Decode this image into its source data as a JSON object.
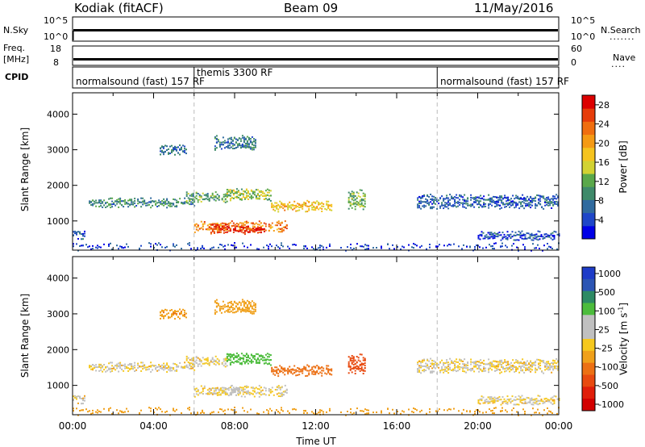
{
  "header": {
    "radar": "Kodiak (fitACF)",
    "beam": "Beam 09",
    "date": "11/May/2016"
  },
  "status_panels": {
    "nsky": {
      "label": "N.Sky",
      "left_ticks": [
        "10^5",
        "10^0"
      ],
      "right_ticks": [
        "10^5",
        "10^0"
      ],
      "right_label": "N.Search"
    },
    "freq": {
      "label_line1": "Freq.",
      "label_line2": "[MHz]",
      "left_ticks": [
        "18",
        "8"
      ],
      "right_ticks": [
        "60",
        "0"
      ],
      "right_label": "Nave"
    },
    "cpid": {
      "label": "CPID"
    }
  },
  "cpid_segments": [
    {
      "label": "normalsound (fast) 157 RF",
      "start_hour": 0
    },
    {
      "label": "themis 3300 RF",
      "start_hour": 6
    },
    {
      "label": "normalsound (fast) 157 RF",
      "start_hour": 18
    }
  ],
  "x_axis": {
    "label": "Time UT",
    "ticks": [
      "00:00",
      "04:00",
      "08:00",
      "12:00",
      "16:00",
      "20:00",
      "00:00"
    ],
    "range_hours": [
      0,
      24
    ]
  },
  "y_axis": {
    "label": "Slant Range [km]",
    "ticks": [
      "1000",
      "2000",
      "3000",
      "4000"
    ],
    "range_km": [
      180,
      4600
    ]
  },
  "power_colorbar": {
    "label": "Power [dB]",
    "ticks": [
      "4",
      "8",
      "12",
      "16",
      "20",
      "24",
      "28"
    ],
    "colors": [
      "#0000e6",
      "#1e46c8",
      "#2f6a9e",
      "#3f8a6a",
      "#5aa84a",
      "#d2d232",
      "#f5c31e",
      "#f59a14",
      "#f06e0f",
      "#e63c0a",
      "#dc0000"
    ]
  },
  "velocity_colorbar": {
    "label": "Velocity [m s-1]",
    "ticks": [
      "1000",
      "500",
      "100",
      "25",
      "-25",
      "-100",
      "-500",
      "-1000"
    ],
    "colors": [
      "#1e3cc8",
      "#2c55b4",
      "#2d8a64",
      "#4cbc3c",
      "#c0c0c0",
      "#c0c0c0",
      "#f5c81e",
      "#f0a01a",
      "#ec7014",
      "#e84a10",
      "#e01e0a",
      "#d20000"
    ]
  },
  "chart_data": [
    {
      "type": "heatmap",
      "title": "Power [dB]",
      "xlabel": "Time UT",
      "ylabel": "Slant Range [km]",
      "xlim": [
        0,
        24
      ],
      "ylim": [
        180,
        4600
      ],
      "color_range": [
        0,
        30
      ],
      "echo_regions": [
        {
          "t_start": 0.0,
          "t_end": 0.6,
          "range_center": 620,
          "range_width": 180,
          "value": 5
        },
        {
          "t_start": 0.8,
          "t_end": 6.0,
          "range_center": 1520,
          "range_width": 160,
          "value": 9
        },
        {
          "t_start": 4.3,
          "t_end": 5.6,
          "range_center": 3000,
          "range_width": 220,
          "value": 7
        },
        {
          "t_start": 5.6,
          "t_end": 7.6,
          "range_center": 1680,
          "range_width": 200,
          "value": 11
        },
        {
          "t_start": 7.6,
          "t_end": 9.8,
          "range_center": 1750,
          "range_width": 260,
          "value": 14
        },
        {
          "t_start": 9.8,
          "t_end": 12.8,
          "range_center": 1420,
          "range_width": 220,
          "value": 18
        },
        {
          "t_start": 6.0,
          "t_end": 10.6,
          "range_center": 850,
          "range_width": 200,
          "value": 22
        },
        {
          "t_start": 6.8,
          "t_end": 9.5,
          "range_center": 780,
          "range_width": 150,
          "value": 28
        },
        {
          "t_start": 7.0,
          "t_end": 9.0,
          "range_center": 3200,
          "range_width": 300,
          "value": 8
        },
        {
          "t_start": 13.6,
          "t_end": 14.4,
          "range_center": 1600,
          "range_width": 450,
          "value": 12
        },
        {
          "t_start": 17.0,
          "t_end": 24.0,
          "range_center": 1550,
          "range_width": 300,
          "value": 6
        },
        {
          "t_start": 20.0,
          "t_end": 24.0,
          "range_center": 600,
          "range_width": 150,
          "value": 5
        },
        {
          "t_start": 0.0,
          "t_end": 24.0,
          "range_center": 280,
          "range_width": 120,
          "value": 4
        }
      ]
    },
    {
      "type": "heatmap",
      "title": "Velocity [m s-1]",
      "xlabel": "Time UT",
      "ylabel": "Slant Range [km]",
      "xlim": [
        0,
        24
      ],
      "ylim": [
        180,
        4600
      ],
      "color_range": [
        -1000,
        1000
      ],
      "echo_regions": [
        {
          "t_start": 0.0,
          "t_end": 0.6,
          "range_center": 620,
          "range_width": 180,
          "value": 0
        },
        {
          "t_start": 0.8,
          "t_end": 6.0,
          "range_center": 1520,
          "range_width": 160,
          "value": 0
        },
        {
          "t_start": 4.3,
          "t_end": 5.6,
          "range_center": 3000,
          "range_width": 220,
          "value": -80
        },
        {
          "t_start": 5.6,
          "t_end": 7.6,
          "range_center": 1680,
          "range_width": 200,
          "value": 0
        },
        {
          "t_start": 7.6,
          "t_end": 9.8,
          "range_center": 1750,
          "range_width": 260,
          "value": 150
        },
        {
          "t_start": 9.8,
          "t_end": 12.8,
          "range_center": 1420,
          "range_width": 220,
          "value": -150
        },
        {
          "t_start": 6.0,
          "t_end": 10.6,
          "range_center": 850,
          "range_width": 200,
          "value": 0
        },
        {
          "t_start": 7.8,
          "t_end": 8.2,
          "range_center": 850,
          "range_width": 200,
          "value": 60
        },
        {
          "t_start": 7.0,
          "t_end": 9.0,
          "range_center": 3200,
          "range_width": 300,
          "value": -60
        },
        {
          "t_start": 13.6,
          "t_end": 14.4,
          "range_center": 1600,
          "range_width": 450,
          "value": -300
        },
        {
          "t_start": 17.0,
          "t_end": 24.0,
          "range_center": 1550,
          "range_width": 300,
          "value": 0
        },
        {
          "t_start": 20.0,
          "t_end": 24.0,
          "range_center": 600,
          "range_width": 150,
          "value": 0
        },
        {
          "t_start": 0.0,
          "t_end": 24.0,
          "range_center": 280,
          "range_width": 120,
          "value": -60
        }
      ]
    }
  ]
}
